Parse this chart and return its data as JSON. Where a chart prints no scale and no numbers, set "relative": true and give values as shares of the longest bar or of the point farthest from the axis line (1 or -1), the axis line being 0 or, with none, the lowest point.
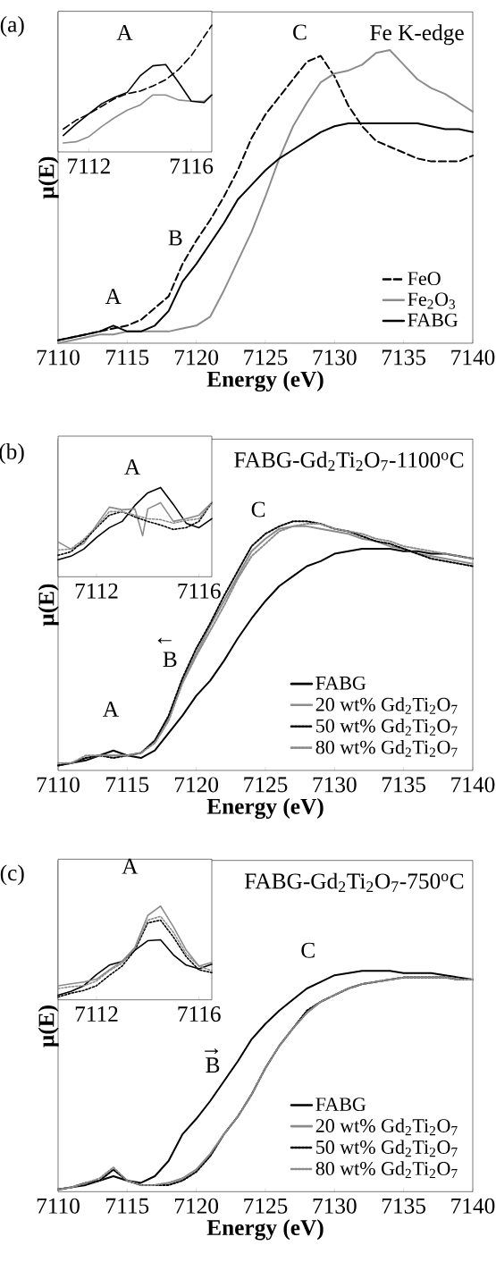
{
  "chart_data": [
    {
      "type": "line",
      "relative": true,
      "title": "(a)",
      "subtitle": "Fe K-edge",
      "xlabel": "Energy (eV)",
      "ylabel": "μ(E)",
      "xlim": [
        7110,
        7140
      ],
      "xticks": [
        7110,
        7115,
        7120,
        7125,
        7130,
        7135,
        7140
      ],
      "legend": "bottom right",
      "x": [
        7110,
        7111,
        7112,
        7113,
        7114,
        7115,
        7116,
        7117,
        7118,
        7119,
        7120,
        7121,
        7122,
        7123,
        7124,
        7125,
        7126,
        7127,
        7128,
        7129,
        7130,
        7131,
        7132,
        7133,
        7134,
        7135,
        7136,
        7137,
        7138,
        7139,
        7140
      ],
      "series": [
        {
          "name": "FeO",
          "color": "#000000",
          "line_style": "dashed",
          "values": [
            0.01,
            0.02,
            0.03,
            0.04,
            0.05,
            0.06,
            0.08,
            0.12,
            0.16,
            0.27,
            0.35,
            0.42,
            0.5,
            0.59,
            0.7,
            0.78,
            0.84,
            0.9,
            0.96,
            0.98,
            0.91,
            0.81,
            0.74,
            0.69,
            0.67,
            0.65,
            0.63,
            0.62,
            0.62,
            0.62,
            0.64
          ]
        },
        {
          "name": "Fe$_{2}$O$_{3}$",
          "color": "#8c8c8c",
          "line_style": "solid",
          "values": [
            0.0,
            0.01,
            0.02,
            0.03,
            0.03,
            0.04,
            0.04,
            0.04,
            0.04,
            0.05,
            0.06,
            0.09,
            0.18,
            0.28,
            0.38,
            0.5,
            0.63,
            0.74,
            0.82,
            0.89,
            0.92,
            0.93,
            0.95,
            0.99,
            1.0,
            0.95,
            0.9,
            0.87,
            0.85,
            0.82,
            0.79
          ]
        },
        {
          "name": "FABG",
          "color": "#000000",
          "line_style": "solid",
          "values": [
            0.01,
            0.02,
            0.03,
            0.04,
            0.06,
            0.04,
            0.04,
            0.06,
            0.11,
            0.21,
            0.27,
            0.34,
            0.41,
            0.49,
            0.54,
            0.59,
            0.63,
            0.66,
            0.69,
            0.72,
            0.74,
            0.75,
            0.75,
            0.75,
            0.75,
            0.75,
            0.75,
            0.74,
            0.73,
            0.73,
            0.72
          ]
        }
      ],
      "annotations": [
        "A",
        "B",
        "C"
      ]
    },
    {
      "type": "line",
      "relative": true,
      "xlim": [
        7110.8,
        7116.8
      ],
      "xticks": [
        7112,
        7116
      ],
      "x": [
        7111,
        7111.5,
        7112,
        7112.5,
        7113,
        7113.5,
        7114,
        7114.5,
        7115,
        7115.5,
        7116,
        7116.5,
        7116.8
      ],
      "series": [
        {
          "color": "#000000",
          "line_style": "dashed",
          "values": [
            0.18,
            0.25,
            0.3,
            0.36,
            0.42,
            0.46,
            0.48,
            0.52,
            0.57,
            0.65,
            0.76,
            0.91,
            1.0
          ]
        },
        {
          "color": "#8c8c8c",
          "line_style": "solid",
          "values": [
            0.07,
            0.08,
            0.12,
            0.2,
            0.27,
            0.33,
            0.37,
            0.45,
            0.45,
            0.41,
            0.4,
            0.4,
            0.45
          ]
        },
        {
          "color": "#000000",
          "line_style": "solid",
          "values": [
            0.13,
            0.22,
            0.3,
            0.38,
            0.43,
            0.47,
            0.6,
            0.68,
            0.69,
            0.55,
            0.4,
            0.39,
            0.45
          ]
        }
      ],
      "annotations": [
        "A"
      ]
    },
    {
      "type": "line",
      "relative": true,
      "title": "(b)",
      "subtitle": "FABG-Gd$_{2}$Ti$_{2}$O$_{7}$-1100$^{o}$C",
      "xlabel": "Energy (eV)",
      "ylabel": "μ(E)",
      "xlim": [
        7110,
        7140
      ],
      "xticks": [
        7110,
        7115,
        7120,
        7125,
        7130,
        7135,
        7140
      ],
      "legend": "bottom right",
      "x": [
        7110,
        7111,
        7112,
        7113,
        7114,
        7115,
        7116,
        7117,
        7118,
        7119,
        7120,
        7121,
        7122,
        7123,
        7124,
        7125,
        7126,
        7127,
        7128,
        7129,
        7130,
        7131,
        7132,
        7133,
        7134,
        7135,
        7136,
        7137,
        7138,
        7139,
        7140
      ],
      "series": [
        {
          "name": "FABG",
          "color": "#000000",
          "line_style": "solid",
          "values": [
            0.02,
            0.03,
            0.04,
            0.06,
            0.08,
            0.06,
            0.05,
            0.08,
            0.15,
            0.22,
            0.3,
            0.36,
            0.44,
            0.53,
            0.61,
            0.68,
            0.74,
            0.78,
            0.82,
            0.84,
            0.87,
            0.88,
            0.89,
            0.89,
            0.89,
            0.88,
            0.88,
            0.87,
            0.87,
            0.86,
            0.85
          ]
        },
        {
          "name": "20 wt% Gd$_{2}$Ti$_{2}$O$_{7}$",
          "color": "#8c8c8c",
          "line_style": "solid",
          "values": [
            0.02,
            0.03,
            0.05,
            0.06,
            0.06,
            0.06,
            0.07,
            0.12,
            0.21,
            0.36,
            0.47,
            0.58,
            0.68,
            0.78,
            0.88,
            0.93,
            0.97,
            0.98,
            0.98,
            0.97,
            0.96,
            0.95,
            0.93,
            0.92,
            0.9,
            0.89,
            0.87,
            0.86,
            0.85,
            0.84,
            0.83
          ]
        },
        {
          "name": "50 wt% Gd$_{2}$Ti$_{2}$O$_{7}$",
          "color": "#000000",
          "line_style": "dotted",
          "values": [
            0.02,
            0.03,
            0.05,
            0.06,
            0.05,
            0.06,
            0.07,
            0.12,
            0.22,
            0.37,
            0.49,
            0.59,
            0.7,
            0.8,
            0.9,
            0.95,
            0.98,
            1.0,
            1.0,
            0.99,
            0.97,
            0.96,
            0.94,
            0.92,
            0.91,
            0.89,
            0.87,
            0.85,
            0.84,
            0.83,
            0.82
          ]
        },
        {
          "name": "80 wt% Gd$_{2}$Ti$_{2}$O$_{7}$",
          "color": "#8c8c8c",
          "line_style": "dotted",
          "values": [
            0.03,
            0.03,
            0.06,
            0.06,
            0.06,
            0.06,
            0.07,
            0.11,
            0.2,
            0.35,
            0.46,
            0.56,
            0.66,
            0.77,
            0.86,
            0.91,
            0.96,
            0.98,
            0.99,
            0.99,
            0.97,
            0.96,
            0.95,
            0.93,
            0.92,
            0.9,
            0.89,
            0.88,
            0.87,
            0.86,
            0.85
          ]
        }
      ],
      "annotations": [
        "A",
        "B",
        "←",
        "C"
      ]
    },
    {
      "type": "line",
      "relative": true,
      "xlim": [
        7110.5,
        7116.5
      ],
      "xticks": [
        7112,
        7116
      ],
      "x": [
        7110.5,
        7111,
        7111.5,
        7112,
        7112.5,
        7113,
        7113.5,
        7114,
        7114.5,
        7115,
        7115.5,
        7116,
        7116.5
      ],
      "series": [
        {
          "color": "#000000",
          "line_style": "solid",
          "values": [
            0.19,
            0.23,
            0.31,
            0.44,
            0.55,
            0.62,
            0.8,
            0.94,
            1.0,
            0.81,
            0.6,
            0.55,
            0.65
          ]
        },
        {
          "color": "#8c8c8c",
          "line_style": "solid",
          "x": [
            7110.5,
            7111,
            7111.5,
            7112,
            7112.5,
            7113,
            7113.5,
            7113.8,
            7114,
            7114.5,
            7115,
            7115.5,
            7116,
            7116.5
          ],
          "values": [
            0.39,
            0.31,
            0.37,
            0.58,
            0.78,
            0.75,
            0.76,
            0.46,
            0.76,
            0.83,
            0.62,
            0.65,
            0.69,
            0.83
          ]
        },
        {
          "color": "#000000",
          "line_style": "dotted",
          "values": [
            0.24,
            0.28,
            0.4,
            0.55,
            0.69,
            0.73,
            0.67,
            0.62,
            0.58,
            0.53,
            0.55,
            0.62,
            0.83
          ]
        },
        {
          "color": "#8c8c8c",
          "line_style": "dotted",
          "values": [
            0.3,
            0.31,
            0.42,
            0.56,
            0.73,
            0.73,
            0.69,
            0.65,
            0.64,
            0.6,
            0.63,
            0.65,
            0.83
          ]
        }
      ],
      "annotations": [
        "A"
      ]
    },
    {
      "type": "line",
      "relative": true,
      "title": "(c)",
      "subtitle": "FABG-Gd$_{2}$Ti$_{2}$O$_{7}$-750$^{o}$C",
      "xlabel": "Energy (eV)",
      "ylabel": "μ(E)",
      "xlim": [
        7110,
        7140
      ],
      "xticks": [
        7110,
        7115,
        7120,
        7125,
        7130,
        7135,
        7140
      ],
      "legend": "bottom right",
      "x": [
        7110,
        7111,
        7112,
        7113,
        7114,
        7115,
        7116,
        7117,
        7118,
        7119,
        7120,
        7121,
        7122,
        7123,
        7124,
        7125,
        7126,
        7127,
        7128,
        7129,
        7130,
        7131,
        7132,
        7133,
        7134,
        7135,
        7136,
        7137,
        7138,
        7139,
        7140
      ],
      "series": [
        {
          "name": "FABG",
          "color": "#000000",
          "line_style": "solid",
          "values": [
            0.01,
            0.02,
            0.03,
            0.05,
            0.07,
            0.05,
            0.04,
            0.07,
            0.14,
            0.26,
            0.33,
            0.41,
            0.5,
            0.59,
            0.69,
            0.76,
            0.82,
            0.87,
            0.92,
            0.95,
            0.98,
            0.99,
            1.0,
            1.0,
            1.0,
            0.99,
            0.99,
            0.99,
            0.98,
            0.97,
            0.96
          ]
        },
        {
          "name": "20 wt% Gd$_{2}$Ti$_{2}$O$_{7}$",
          "color": "#8c8c8c",
          "line_style": "solid",
          "values": [
            0.01,
            0.02,
            0.04,
            0.05,
            0.1,
            0.05,
            0.03,
            0.03,
            0.04,
            0.06,
            0.1,
            0.17,
            0.26,
            0.34,
            0.44,
            0.56,
            0.66,
            0.74,
            0.81,
            0.86,
            0.89,
            0.92,
            0.94,
            0.95,
            0.96,
            0.97,
            0.97,
            0.97,
            0.97,
            0.96,
            0.96
          ]
        },
        {
          "name": "50 wt% Gd$_{2}$Ti$_{2}$O$_{7}$",
          "color": "#000000",
          "line_style": "dotted",
          "values": [
            0.01,
            0.02,
            0.04,
            0.05,
            0.1,
            0.05,
            0.03,
            0.03,
            0.03,
            0.05,
            0.09,
            0.16,
            0.26,
            0.34,
            0.44,
            0.56,
            0.66,
            0.74,
            0.82,
            0.86,
            0.89,
            0.92,
            0.94,
            0.95,
            0.96,
            0.97,
            0.97,
            0.97,
            0.97,
            0.96,
            0.96
          ]
        },
        {
          "name": "80 wt% Gd$_{2}$Ti$_{2}$O$_{7}$",
          "color": "#8c8c8c",
          "line_style": "dotted",
          "values": [
            0.01,
            0.02,
            0.04,
            0.06,
            0.11,
            0.05,
            0.03,
            0.03,
            0.04,
            0.06,
            0.1,
            0.17,
            0.26,
            0.34,
            0.44,
            0.56,
            0.66,
            0.74,
            0.81,
            0.86,
            0.89,
            0.92,
            0.94,
            0.95,
            0.96,
            0.97,
            0.97,
            0.97,
            0.97,
            0.96,
            0.96
          ]
        }
      ],
      "annotations": [
        "B",
        "→",
        "C"
      ]
    },
    {
      "type": "line",
      "relative": true,
      "xlim": [
        7110.5,
        7116.5
      ],
      "xticks": [
        7112,
        7116
      ],
      "x": [
        7110.5,
        7111,
        7111.5,
        7112,
        7112.5,
        7113,
        7113.5,
        7114,
        7114.5,
        7115,
        7115.5,
        7116,
        7116.5
      ],
      "series": [
        {
          "color": "#000000",
          "line_style": "solid",
          "values": [
            0.05,
            0.09,
            0.15,
            0.27,
            0.37,
            0.41,
            0.53,
            0.63,
            0.64,
            0.48,
            0.37,
            0.33,
            0.38
          ]
        },
        {
          "color": "#8c8c8c",
          "line_style": "solid",
          "values": [
            0.15,
            0.17,
            0.19,
            0.22,
            0.32,
            0.41,
            0.56,
            0.9,
            1.0,
            0.78,
            0.53,
            0.36,
            0.4
          ]
        },
        {
          "color": "#000000",
          "line_style": "dotted",
          "values": [
            0.03,
            0.07,
            0.1,
            0.15,
            0.26,
            0.36,
            0.53,
            0.82,
            0.85,
            0.67,
            0.46,
            0.32,
            0.29
          ]
        },
        {
          "color": "#8c8c8c",
          "line_style": "dotted",
          "values": [
            0.12,
            0.14,
            0.15,
            0.2,
            0.31,
            0.39,
            0.55,
            0.85,
            0.89,
            0.72,
            0.49,
            0.36,
            0.31
          ]
        }
      ],
      "annotations": [
        "A"
      ]
    }
  ]
}
